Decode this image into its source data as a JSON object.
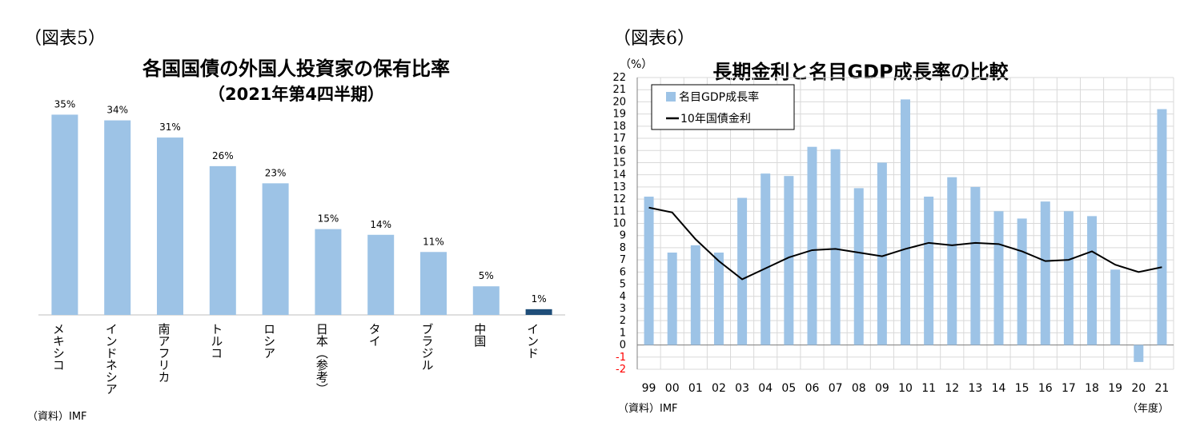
{
  "left": {
    "fig_label": "（図表5）",
    "title": "各国国債の外国人投資家の保有比率",
    "subtitle": "（2021年第4四半期）",
    "source": "（資料）IMF"
  },
  "right": {
    "fig_label": "（図表6）",
    "title": "長期金利と名目GDP成長率の比較",
    "unit_label": "（%）",
    "year_unit_label": "（年度）",
    "source": "（資料）IMF"
  },
  "colors": {
    "bar": "#9dc3e6",
    "highlight_bar": "#1f4e79",
    "line": "#000000",
    "negative_tick": "#ff0000",
    "grid": "#d9d9d9"
  },
  "chart_data": [
    {
      "type": "bar",
      "categories": [
        "メキシコ",
        "インドネシア",
        "南アフリカ",
        "トルコ",
        "ロシア",
        "日本（参考）",
        "タイ",
        "ブラジル",
        "中国",
        "インド"
      ],
      "values": [
        35,
        34,
        31,
        26,
        23,
        15,
        14,
        11,
        5,
        1
      ],
      "value_labels": [
        "35%",
        "34%",
        "31%",
        "26%",
        "23%",
        "15%",
        "14%",
        "11%",
        "5%",
        "1%"
      ],
      "highlight_index": 9,
      "ylim": [
        0,
        36
      ],
      "grid": false,
      "legend": "none"
    },
    {
      "type": "bar",
      "categories": [
        "99",
        "00",
        "01",
        "02",
        "03",
        "04",
        "05",
        "06",
        "07",
        "08",
        "09",
        "10",
        "11",
        "12",
        "13",
        "14",
        "15",
        "16",
        "17",
        "18",
        "19",
        "20",
        "21"
      ],
      "yticks": [
        "-2",
        "-1",
        "0",
        "1",
        "2",
        "3",
        "4",
        "5",
        "6",
        "7",
        "8",
        "9",
        "10",
        "11",
        "12",
        "13",
        "14",
        "15",
        "16",
        "17",
        "18",
        "19",
        "20",
        "21",
        "22"
      ],
      "ylim": [
        -2,
        22
      ],
      "grid": true,
      "legend_position": "top-left",
      "series": [
        {
          "name": "名目GDP成長率",
          "type": "bar",
          "values": [
            12.2,
            7.6,
            8.2,
            7.6,
            12.1,
            14.1,
            13.9,
            16.3,
            16.1,
            12.9,
            15.0,
            20.2,
            12.2,
            13.8,
            13.0,
            11.0,
            10.4,
            11.8,
            11.0,
            10.6,
            6.2,
            -1.4,
            19.4
          ]
        },
        {
          "name": "10年国債金利",
          "type": "line",
          "values": [
            11.3,
            10.9,
            8.7,
            6.9,
            5.4,
            6.3,
            7.2,
            7.8,
            7.9,
            7.6,
            7.3,
            7.9,
            8.4,
            8.2,
            8.4,
            8.3,
            7.7,
            6.9,
            7.0,
            7.7,
            6.6,
            6.0,
            6.4
          ]
        }
      ]
    }
  ]
}
